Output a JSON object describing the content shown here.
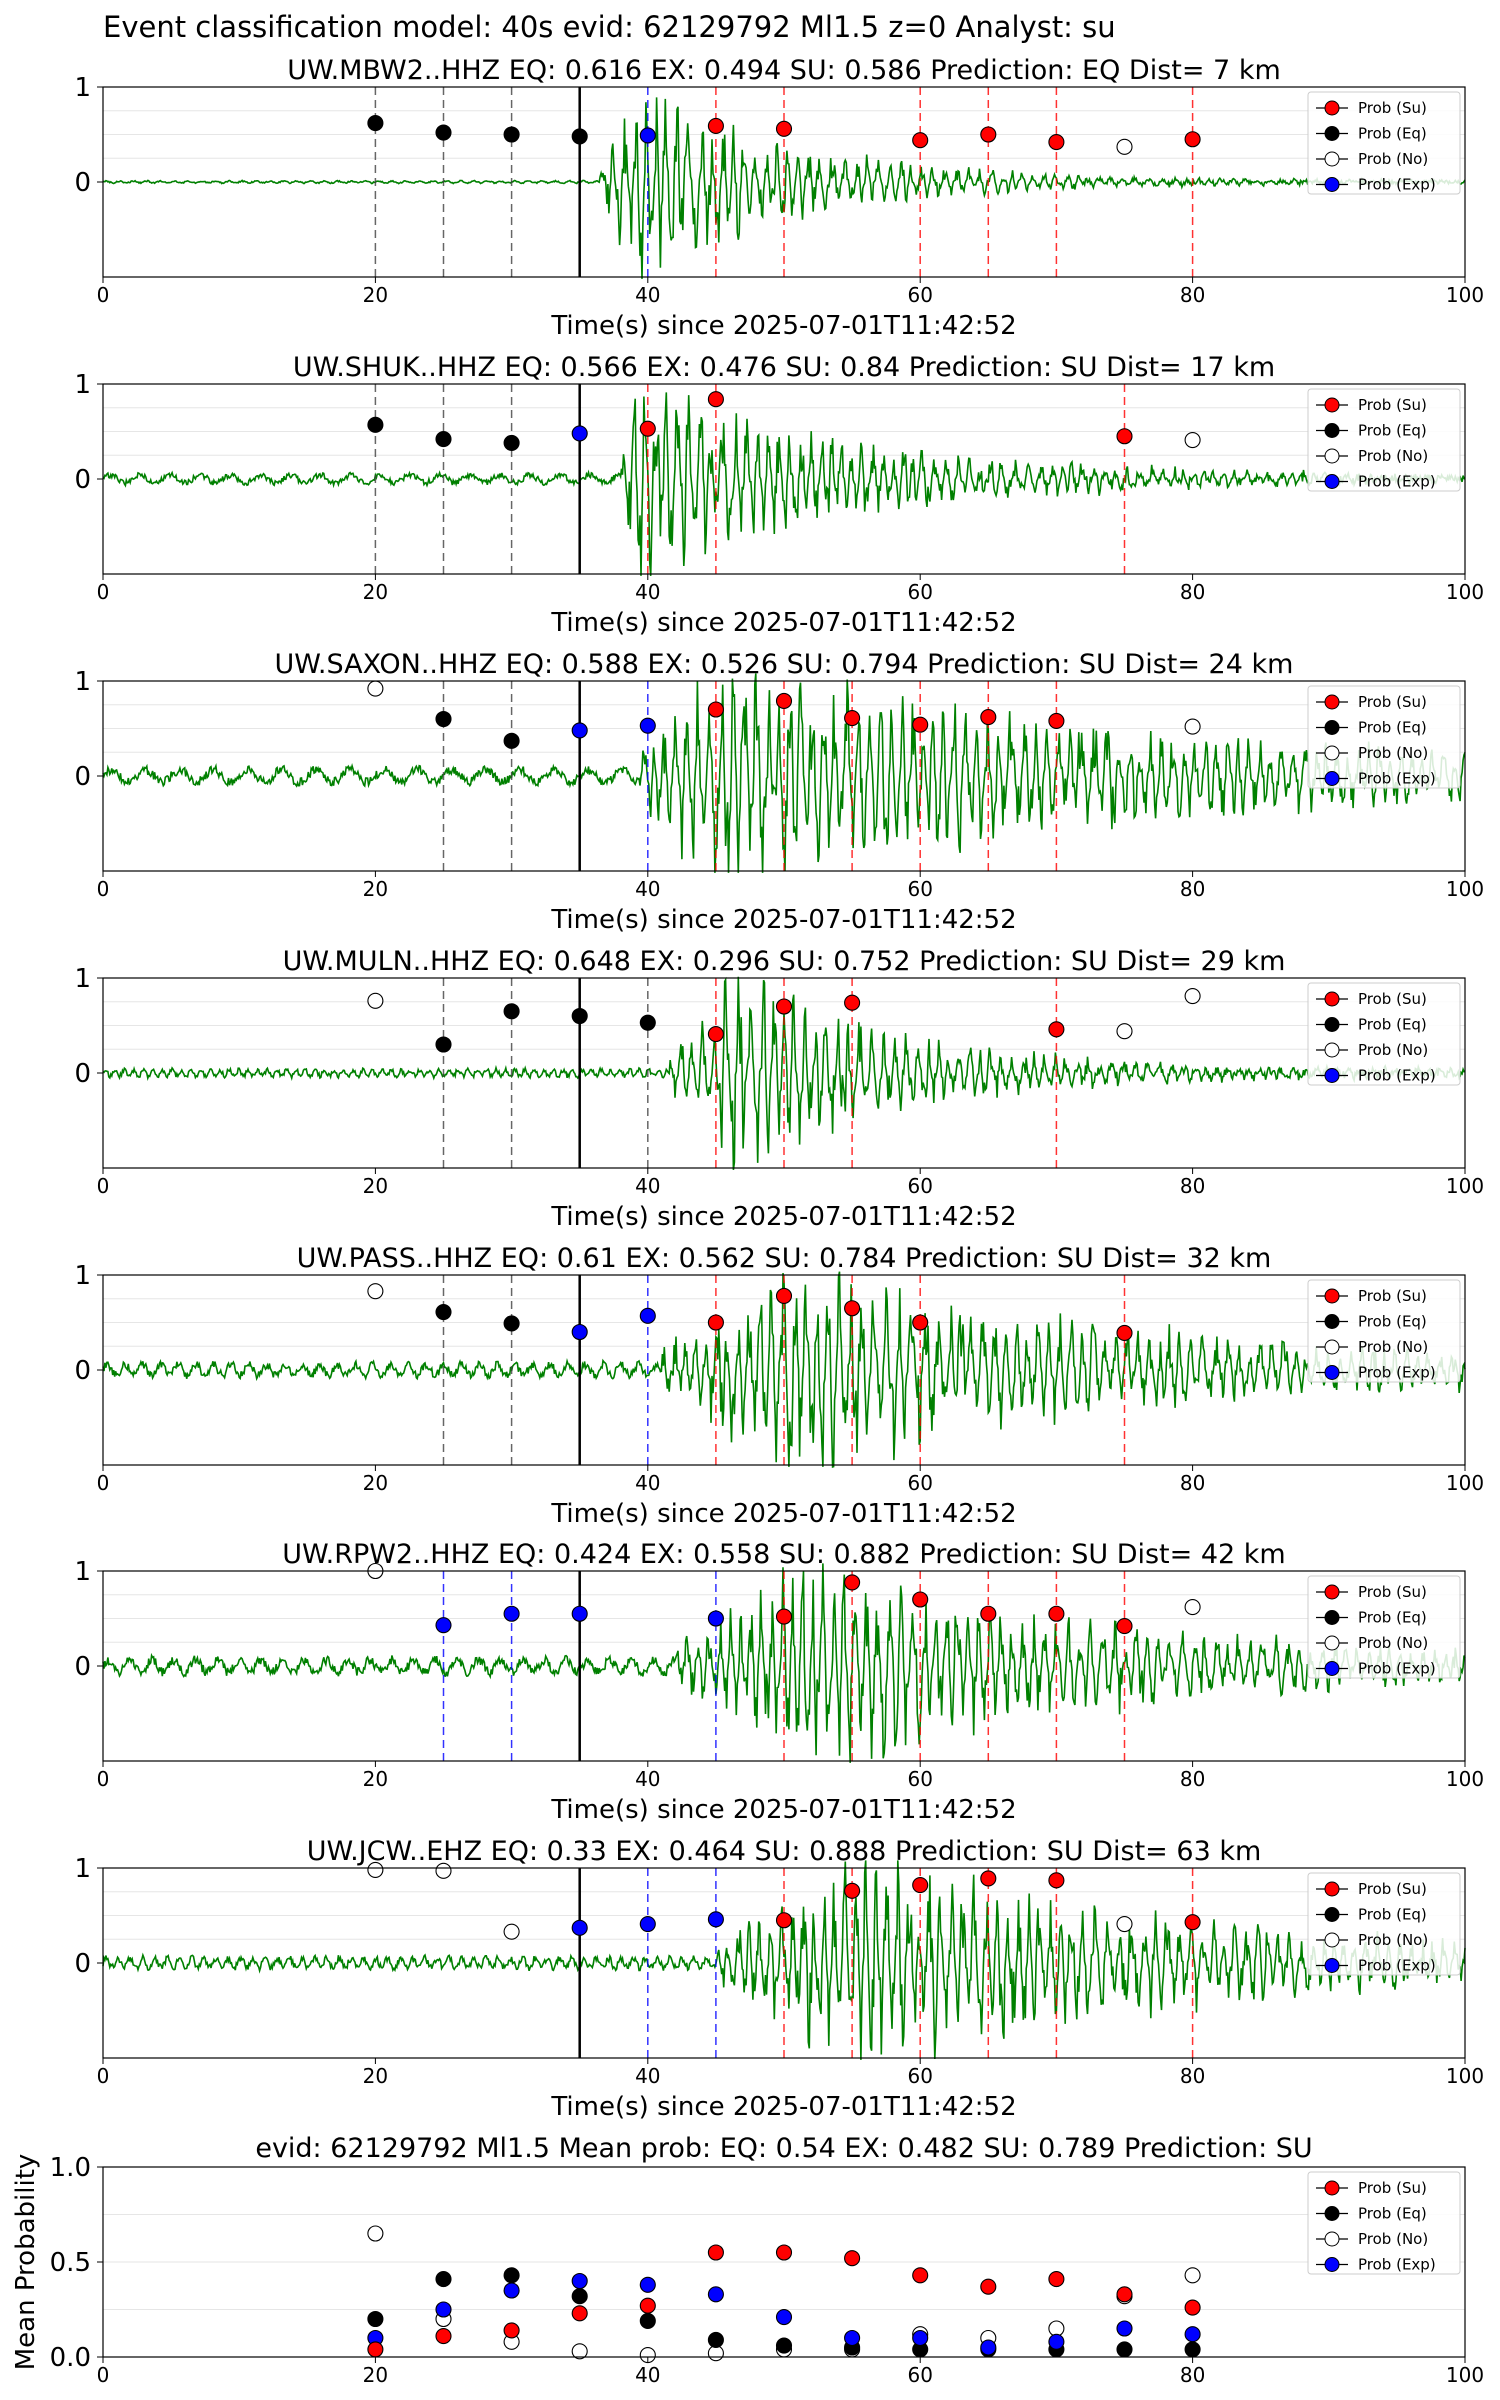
{
  "suptitle": "Event classification model: 40s evid: 62129792 Ml1.5 z=0 Analyst: su",
  "colors": {
    "su": "#ff0000",
    "eq": "#000000",
    "no": "#ffffff",
    "exp": "#0000ff",
    "trace": "#008000"
  },
  "legend_labels": [
    "Prob (Su)",
    "Prob (Eq)",
    "Prob (No)",
    "Prob (Exp)"
  ],
  "chart_data": [
    {
      "type": "scatter",
      "title": "UW.MBW2..HHZ   EQ: 0.616  EX: 0.494  SU: 0.586   Prediction: EQ    Dist= 7 km",
      "xlabel": "Time(s) since 2025-07-01T11:42:52",
      "xlim": [
        0,
        100
      ],
      "ylim": [
        -1,
        1
      ],
      "xticks": [
        "0",
        "20",
        "40",
        "60",
        "80",
        "100"
      ],
      "yticks": [
        "1",
        "0"
      ],
      "legend_position": "top-right",
      "waveform": {
        "onset": 36.5,
        "peak_time": 39.5,
        "amplitude": 1.0,
        "pre_noise": 0.012,
        "coda": 0.3,
        "decay": 10,
        "period": 1.0,
        "end_noise": 0.02
      },
      "vlines": [
        {
          "x": 20,
          "cls": "eq"
        },
        {
          "x": 25,
          "cls": "eq"
        },
        {
          "x": 30,
          "cls": "eq"
        },
        {
          "x": 35,
          "cls": "origin"
        },
        {
          "x": 40,
          "cls": "exp"
        },
        {
          "x": 45,
          "cls": "su"
        },
        {
          "x": 50,
          "cls": "su"
        },
        {
          "x": 60,
          "cls": "su"
        },
        {
          "x": 65,
          "cls": "su"
        },
        {
          "x": 70,
          "cls": "su"
        },
        {
          "x": 80,
          "cls": "su"
        }
      ],
      "points": [
        {
          "x": 20,
          "y": 0.62,
          "cls": "eq"
        },
        {
          "x": 25,
          "y": 0.52,
          "cls": "eq"
        },
        {
          "x": 30,
          "y": 0.5,
          "cls": "eq"
        },
        {
          "x": 35,
          "y": 0.48,
          "cls": "eq"
        },
        {
          "x": 40,
          "y": 0.49,
          "cls": "exp"
        },
        {
          "x": 45,
          "y": 0.59,
          "cls": "su"
        },
        {
          "x": 50,
          "y": 0.56,
          "cls": "su"
        },
        {
          "x": 60,
          "y": 0.44,
          "cls": "su"
        },
        {
          "x": 65,
          "y": 0.5,
          "cls": "su"
        },
        {
          "x": 70,
          "y": 0.42,
          "cls": "su"
        },
        {
          "x": 75,
          "y": 0.37,
          "cls": "no"
        },
        {
          "x": 80,
          "y": 0.45,
          "cls": "su"
        }
      ]
    },
    {
      "type": "scatter",
      "title": "UW.SHUK..HHZ   EQ: 0.566  EX: 0.476  SU: 0.84   Prediction: SU    Dist= 17 km",
      "xlabel": "Time(s) since 2025-07-01T11:42:52",
      "xlim": [
        0,
        100
      ],
      "ylim": [
        -1,
        1
      ],
      "xticks": [
        "0",
        "20",
        "40",
        "60",
        "80",
        "100"
      ],
      "yticks": [
        "1",
        "0"
      ],
      "legend_position": "top-right",
      "waveform": {
        "onset": 38,
        "peak_time": 39.5,
        "amplitude": 1.0,
        "pre_noise": 0.05,
        "coda": 0.3,
        "decay": 14,
        "period": 2.2,
        "end_noise": 0.04
      },
      "vlines": [
        {
          "x": 20,
          "cls": "eq"
        },
        {
          "x": 25,
          "cls": "eq"
        },
        {
          "x": 30,
          "cls": "eq"
        },
        {
          "x": 35,
          "cls": "origin"
        },
        {
          "x": 40,
          "cls": "su"
        },
        {
          "x": 45,
          "cls": "su"
        },
        {
          "x": 75,
          "cls": "su"
        }
      ],
      "points": [
        {
          "x": 20,
          "y": 0.57,
          "cls": "eq"
        },
        {
          "x": 25,
          "y": 0.42,
          "cls": "eq"
        },
        {
          "x": 30,
          "y": 0.38,
          "cls": "eq"
        },
        {
          "x": 35,
          "y": 0.48,
          "cls": "exp"
        },
        {
          "x": 40,
          "y": 0.53,
          "cls": "su"
        },
        {
          "x": 45,
          "y": 0.84,
          "cls": "su"
        },
        {
          "x": 75,
          "y": 0.45,
          "cls": "su"
        },
        {
          "x": 80,
          "y": 0.41,
          "cls": "no"
        }
      ]
    },
    {
      "type": "scatter",
      "title": "UW.SAXON..HHZ   EQ: 0.588  EX: 0.526  SU: 0.794   Prediction: SU    Dist= 24 km",
      "xlabel": "Time(s) since 2025-07-01T11:42:52",
      "xlim": [
        0,
        100
      ],
      "ylim": [
        -1,
        1
      ],
      "xticks": [
        "0",
        "20",
        "40",
        "60",
        "80",
        "100"
      ],
      "yticks": [
        "1",
        "0"
      ],
      "legend_position": "top-right",
      "waveform": {
        "onset": 39.5,
        "peak_time": 45,
        "amplitude": 1.0,
        "pre_noise": 0.08,
        "coda": 0.55,
        "decay": 30,
        "period": 2.5,
        "end_noise": 0.05
      },
      "vlines": [
        {
          "x": 25,
          "cls": "eq"
        },
        {
          "x": 30,
          "cls": "eq"
        },
        {
          "x": 35,
          "cls": "origin"
        },
        {
          "x": 40,
          "cls": "exp"
        },
        {
          "x": 45,
          "cls": "su"
        },
        {
          "x": 50,
          "cls": "su"
        },
        {
          "x": 55,
          "cls": "su"
        },
        {
          "x": 60,
          "cls": "su"
        },
        {
          "x": 65,
          "cls": "su"
        },
        {
          "x": 70,
          "cls": "su"
        }
      ],
      "points": [
        {
          "x": 20,
          "y": 0.92,
          "cls": "no"
        },
        {
          "x": 25,
          "y": 0.6,
          "cls": "eq"
        },
        {
          "x": 30,
          "y": 0.37,
          "cls": "eq"
        },
        {
          "x": 35,
          "y": 0.48,
          "cls": "exp"
        },
        {
          "x": 40,
          "y": 0.53,
          "cls": "exp"
        },
        {
          "x": 45,
          "y": 0.7,
          "cls": "su"
        },
        {
          "x": 50,
          "y": 0.79,
          "cls": "su"
        },
        {
          "x": 55,
          "y": 0.61,
          "cls": "su"
        },
        {
          "x": 60,
          "y": 0.54,
          "cls": "su"
        },
        {
          "x": 65,
          "y": 0.62,
          "cls": "su"
        },
        {
          "x": 70,
          "y": 0.58,
          "cls": "su"
        },
        {
          "x": 80,
          "y": 0.52,
          "cls": "no"
        }
      ]
    },
    {
      "type": "scatter",
      "title": "UW.MULN..HHZ   EQ: 0.648  EX: 0.296  SU: 0.752   Prediction: SU    Dist= 29 km",
      "xlabel": "Time(s) since 2025-07-01T11:42:52",
      "xlim": [
        0,
        100
      ],
      "ylim": [
        -1,
        1
      ],
      "xticks": [
        "0",
        "20",
        "40",
        "60",
        "80",
        "100"
      ],
      "yticks": [
        "1",
        "0"
      ],
      "legend_position": "top-right",
      "waveform": {
        "onset": 41.5,
        "peak_time": 46,
        "amplitude": 1.0,
        "pre_noise": 0.04,
        "coda": 0.25,
        "decay": 12,
        "period": 0.7,
        "end_noise": 0.04
      },
      "vlines": [
        {
          "x": 25,
          "cls": "eq"
        },
        {
          "x": 30,
          "cls": "eq"
        },
        {
          "x": 35,
          "cls": "origin"
        },
        {
          "x": 40,
          "cls": "eq"
        },
        {
          "x": 45,
          "cls": "su"
        },
        {
          "x": 50,
          "cls": "su"
        },
        {
          "x": 55,
          "cls": "su"
        },
        {
          "x": 70,
          "cls": "su"
        }
      ],
      "points": [
        {
          "x": 20,
          "y": 0.76,
          "cls": "no"
        },
        {
          "x": 25,
          "y": 0.3,
          "cls": "eq"
        },
        {
          "x": 30,
          "y": 0.65,
          "cls": "eq"
        },
        {
          "x": 35,
          "y": 0.6,
          "cls": "eq"
        },
        {
          "x": 40,
          "y": 0.53,
          "cls": "eq"
        },
        {
          "x": 45,
          "y": 0.41,
          "cls": "su"
        },
        {
          "x": 50,
          "y": 0.7,
          "cls": "su"
        },
        {
          "x": 55,
          "y": 0.74,
          "cls": "su"
        },
        {
          "x": 70,
          "y": 0.46,
          "cls": "su"
        },
        {
          "x": 75,
          "y": 0.44,
          "cls": "no"
        },
        {
          "x": 80,
          "y": 0.81,
          "cls": "no"
        }
      ]
    },
    {
      "type": "scatter",
      "title": "UW.PASS..HHZ   EQ: 0.61  EX: 0.562  SU: 0.784   Prediction: SU    Dist= 32 km",
      "xlabel": "Time(s) since 2025-07-01T11:42:52",
      "xlim": [
        0,
        100
      ],
      "ylim": [
        -1,
        1
      ],
      "xticks": [
        "0",
        "20",
        "40",
        "60",
        "80",
        "100"
      ],
      "yticks": [
        "1",
        "0"
      ],
      "legend_position": "top-right",
      "waveform": {
        "onset": 41,
        "peak_time": 51,
        "amplitude": 1.0,
        "pre_noise": 0.07,
        "coda": 0.45,
        "decay": 22,
        "period": 1.3,
        "end_noise": 0.06
      },
      "vlines": [
        {
          "x": 25,
          "cls": "eq"
        },
        {
          "x": 30,
          "cls": "eq"
        },
        {
          "x": 35,
          "cls": "origin"
        },
        {
          "x": 40,
          "cls": "exp"
        },
        {
          "x": 45,
          "cls": "su"
        },
        {
          "x": 50,
          "cls": "su"
        },
        {
          "x": 55,
          "cls": "su"
        },
        {
          "x": 60,
          "cls": "su"
        },
        {
          "x": 75,
          "cls": "su"
        }
      ],
      "points": [
        {
          "x": 20,
          "y": 0.83,
          "cls": "no"
        },
        {
          "x": 25,
          "y": 0.61,
          "cls": "eq"
        },
        {
          "x": 30,
          "y": 0.49,
          "cls": "eq"
        },
        {
          "x": 35,
          "y": 0.4,
          "cls": "exp"
        },
        {
          "x": 40,
          "y": 0.57,
          "cls": "exp"
        },
        {
          "x": 45,
          "y": 0.5,
          "cls": "su"
        },
        {
          "x": 50,
          "y": 0.78,
          "cls": "su"
        },
        {
          "x": 55,
          "y": 0.65,
          "cls": "su"
        },
        {
          "x": 60,
          "y": 0.5,
          "cls": "su"
        },
        {
          "x": 75,
          "y": 0.39,
          "cls": "su"
        }
      ]
    },
    {
      "type": "scatter",
      "title": "UW.RPW2..HHZ   EQ: 0.424  EX: 0.558  SU: 0.882   Prediction: SU    Dist= 42 km",
      "xlabel": "Time(s) since 2025-07-01T11:42:52",
      "xlim": [
        0,
        100
      ],
      "ylim": [
        -1,
        1
      ],
      "xticks": [
        "0",
        "20",
        "40",
        "60",
        "80",
        "100"
      ],
      "yticks": [
        "1",
        "0"
      ],
      "legend_position": "top-right",
      "waveform": {
        "onset": 42,
        "peak_time": 52,
        "amplitude": 0.95,
        "pre_noise": 0.08,
        "coda": 0.45,
        "decay": 22,
        "period": 1.6,
        "end_noise": 0.05
      },
      "vlines": [
        {
          "x": 25,
          "cls": "exp"
        },
        {
          "x": 30,
          "cls": "exp"
        },
        {
          "x": 35,
          "cls": "origin"
        },
        {
          "x": 45,
          "cls": "exp"
        },
        {
          "x": 50,
          "cls": "su"
        },
        {
          "x": 55,
          "cls": "su"
        },
        {
          "x": 60,
          "cls": "su"
        },
        {
          "x": 65,
          "cls": "su"
        },
        {
          "x": 70,
          "cls": "su"
        },
        {
          "x": 75,
          "cls": "su"
        }
      ],
      "points": [
        {
          "x": 20,
          "y": 1.0,
          "cls": "no"
        },
        {
          "x": 25,
          "y": 0.43,
          "cls": "exp"
        },
        {
          "x": 30,
          "y": 0.55,
          "cls": "exp"
        },
        {
          "x": 35,
          "y": 0.55,
          "cls": "exp"
        },
        {
          "x": 45,
          "y": 0.5,
          "cls": "exp"
        },
        {
          "x": 50,
          "y": 0.52,
          "cls": "su"
        },
        {
          "x": 55,
          "y": 0.88,
          "cls": "su"
        },
        {
          "x": 60,
          "y": 0.7,
          "cls": "su"
        },
        {
          "x": 65,
          "y": 0.55,
          "cls": "su"
        },
        {
          "x": 70,
          "y": 0.55,
          "cls": "su"
        },
        {
          "x": 75,
          "y": 0.42,
          "cls": "su"
        },
        {
          "x": 80,
          "y": 0.62,
          "cls": "no"
        }
      ]
    },
    {
      "type": "scatter",
      "title": "UW.JCW..EHZ   EQ: 0.33  EX: 0.464  SU: 0.888   Prediction: SU    Dist= 63 km",
      "xlabel": "Time(s) since 2025-07-01T11:42:52",
      "xlim": [
        0,
        100
      ],
      "ylim": [
        -1,
        1
      ],
      "xticks": [
        "0",
        "20",
        "40",
        "60",
        "80",
        "100"
      ],
      "yticks": [
        "1",
        "0"
      ],
      "legend_position": "top-right",
      "waveform": {
        "onset": 45,
        "peak_time": 56,
        "amplitude": 1.0,
        "pre_noise": 0.06,
        "coda": 0.5,
        "decay": 22,
        "period": 0.9,
        "end_noise": 0.07
      },
      "vlines": [
        {
          "x": 35,
          "cls": "origin"
        },
        {
          "x": 40,
          "cls": "exp"
        },
        {
          "x": 45,
          "cls": "exp"
        },
        {
          "x": 50,
          "cls": "su"
        },
        {
          "x": 55,
          "cls": "su"
        },
        {
          "x": 60,
          "cls": "su"
        },
        {
          "x": 65,
          "cls": "su"
        },
        {
          "x": 70,
          "cls": "su"
        },
        {
          "x": 80,
          "cls": "su"
        }
      ],
      "points": [
        {
          "x": 20,
          "y": 0.98,
          "cls": "no"
        },
        {
          "x": 25,
          "y": 0.97,
          "cls": "no"
        },
        {
          "x": 30,
          "y": 0.33,
          "cls": "no"
        },
        {
          "x": 35,
          "y": 0.37,
          "cls": "exp"
        },
        {
          "x": 40,
          "y": 0.41,
          "cls": "exp"
        },
        {
          "x": 45,
          "y": 0.46,
          "cls": "exp"
        },
        {
          "x": 50,
          "y": 0.45,
          "cls": "su"
        },
        {
          "x": 55,
          "y": 0.76,
          "cls": "su"
        },
        {
          "x": 60,
          "y": 0.82,
          "cls": "su"
        },
        {
          "x": 65,
          "y": 0.89,
          "cls": "su"
        },
        {
          "x": 70,
          "y": 0.87,
          "cls": "su"
        },
        {
          "x": 75,
          "y": 0.41,
          "cls": "no"
        },
        {
          "x": 80,
          "y": 0.43,
          "cls": "su"
        }
      ]
    },
    {
      "type": "scatter",
      "title": "evid: 62129792  Ml1.5   Mean prob:   EQ: 0.54  EX: 0.482  SU: 0.789   Prediction: SU",
      "xlabel": "",
      "ylabel": "Mean Probability",
      "xlim": [
        0,
        100
      ],
      "ylim": [
        0,
        1
      ],
      "xticks": [
        "0",
        "20",
        "40",
        "60",
        "80",
        "100"
      ],
      "yticks": [
        "1.0",
        "0.5",
        "0.0"
      ],
      "legend_position": "top-right",
      "series": [
        {
          "cls": "no",
          "x": [
            20,
            25,
            30,
            35,
            40,
            45,
            50,
            55,
            60,
            65,
            70,
            75,
            80
          ],
          "y": [
            0.65,
            0.2,
            0.08,
            0.03,
            0.01,
            0.02,
            0.04,
            0.04,
            0.12,
            0.1,
            0.15,
            0.32,
            0.43
          ]
        },
        {
          "cls": "eq",
          "x": [
            20,
            25,
            30,
            35,
            40,
            45,
            50,
            55,
            60,
            65,
            70,
            75,
            80
          ],
          "y": [
            0.2,
            0.41,
            0.43,
            0.32,
            0.19,
            0.09,
            0.06,
            0.05,
            0.04,
            0.04,
            0.04,
            0.04,
            0.04
          ]
        },
        {
          "cls": "exp",
          "x": [
            20,
            25,
            30,
            35,
            40,
            45,
            50,
            55,
            60,
            65,
            70,
            75,
            80
          ],
          "y": [
            0.1,
            0.25,
            0.35,
            0.4,
            0.38,
            0.33,
            0.21,
            0.1,
            0.1,
            0.05,
            0.08,
            0.15,
            0.12
          ]
        },
        {
          "cls": "su",
          "x": [
            20,
            25,
            30,
            35,
            40,
            45,
            50,
            55,
            60,
            65,
            70,
            75,
            80
          ],
          "y": [
            0.04,
            0.11,
            0.14,
            0.23,
            0.27,
            0.55,
            0.55,
            0.52,
            0.43,
            0.37,
            0.41,
            0.33,
            0.26
          ]
        }
      ]
    }
  ]
}
